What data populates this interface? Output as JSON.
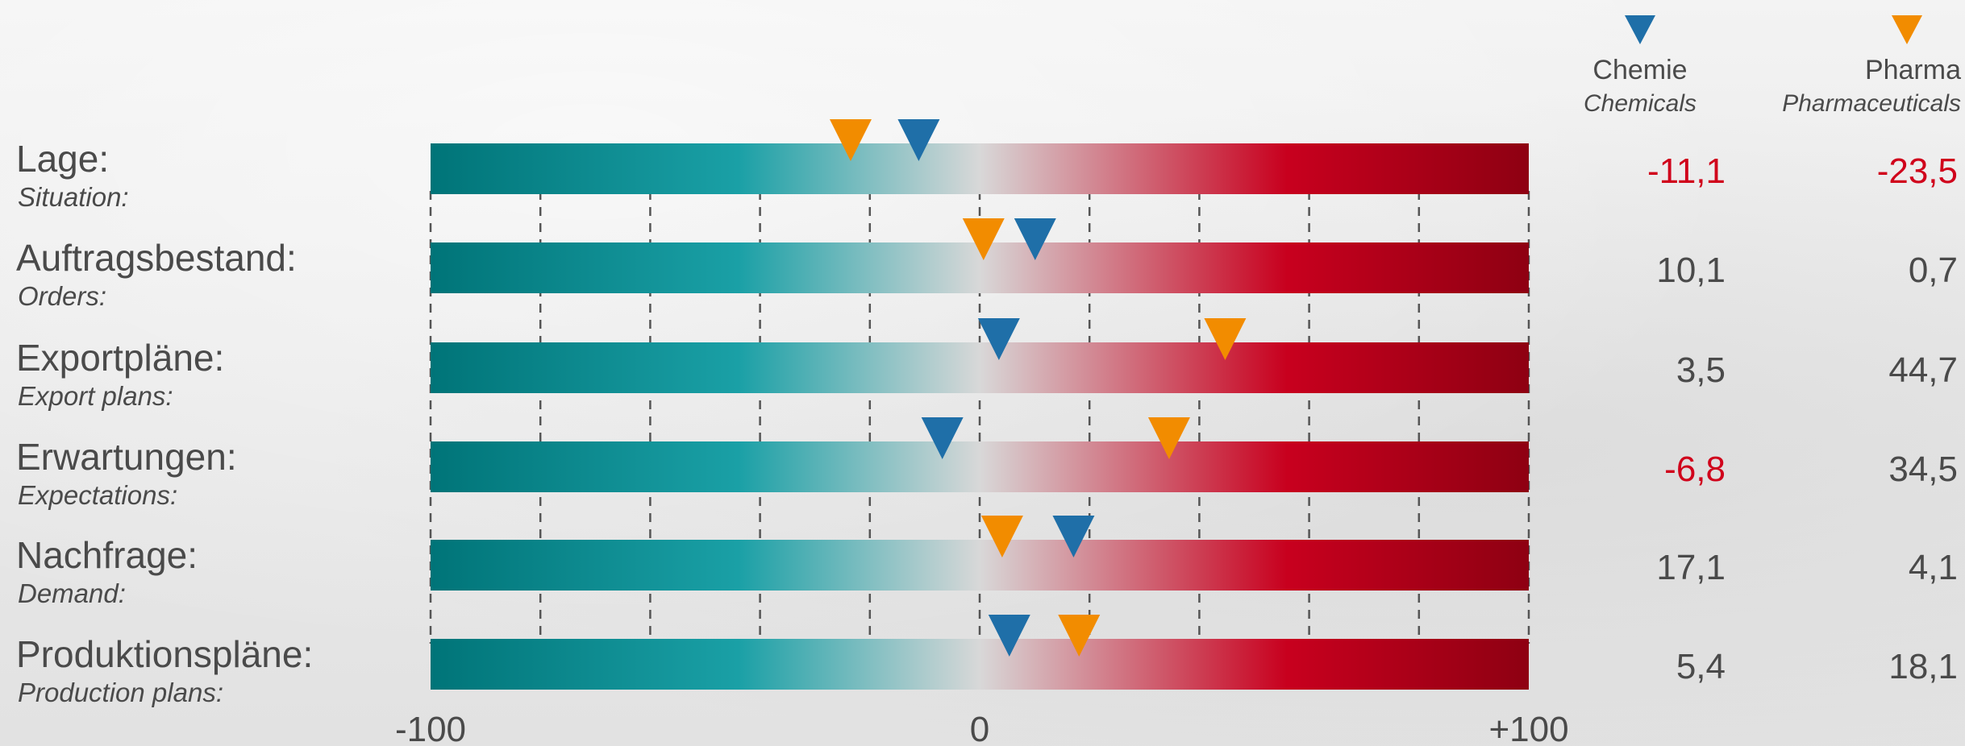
{
  "colors": {
    "chemie_marker": "#1f6fa8",
    "pharma_marker": "#f28c00",
    "negative_value": "#d0021b",
    "positive_value": "#4a4a4a",
    "bar_left": "#007478",
    "bar_mid_left": "#1aa0a6",
    "bar_center": "#d8d8d8",
    "bar_mid_right": "#c8001e",
    "bar_right": "#8e0012"
  },
  "chart_data": {
    "type": "scatter",
    "xlim": [
      -100,
      100
    ],
    "x_tick_labels": [
      "-100",
      "0",
      "+100"
    ],
    "grid_step": 20,
    "grid": true,
    "legend": "top-right",
    "series": [
      {
        "key": "chemie",
        "name": "Chemie",
        "name_en": "Chemicals",
        "marker": "down-triangle"
      },
      {
        "key": "pharma",
        "name": "Pharma",
        "name_en": "Pharmaceuticals",
        "marker": "down-triangle"
      }
    ],
    "rows": [
      {
        "label": "Lage:",
        "label_en": "Situation:",
        "chemie": -11.1,
        "pharma": -23.5,
        "chemie_text": "-11,1",
        "pharma_text": "-23,5"
      },
      {
        "label": "Auftragsbestand:",
        "label_en": "Orders:",
        "chemie": 10.1,
        "pharma": 0.7,
        "chemie_text": "10,1",
        "pharma_text": "0,7"
      },
      {
        "label": "Exportpläne:",
        "label_en": "Export plans:",
        "chemie": 3.5,
        "pharma": 44.7,
        "chemie_text": "3,5",
        "pharma_text": "44,7"
      },
      {
        "label": "Erwartungen:",
        "label_en": "Expectations:",
        "chemie": -6.8,
        "pharma": 34.5,
        "chemie_text": "-6,8",
        "pharma_text": "34,5"
      },
      {
        "label": "Nachfrage:",
        "label_en": "Demand:",
        "chemie": 17.1,
        "pharma": 4.1,
        "chemie_text": "17,1",
        "pharma_text": "4,1"
      },
      {
        "label": "Produktionspläne:",
        "label_en": "Production plans:",
        "chemie": 5.4,
        "pharma": 18.1,
        "chemie_text": "5,4",
        "pharma_text": "18,1"
      }
    ]
  }
}
